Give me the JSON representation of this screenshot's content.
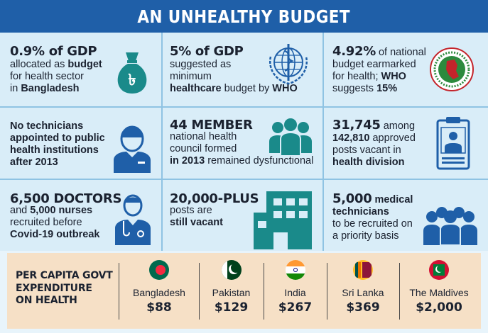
{
  "title": "AN UNHEALTHY BUDGET",
  "cells": [
    {
      "id": "gdp",
      "line1_bold": "0.9%",
      "line1_rest": " of GDP",
      "line2": "allocated as ",
      "line2_bold": "budget",
      "line3": "for health sector",
      "line4": "in ",
      "line4_bold": "Bangladesh"
    },
    {
      "id": "who",
      "line1_bold": "5%",
      "line1_rest": " of GDP",
      "line2": "suggested as",
      "line3": "minimum",
      "line4_bold": "healthcare",
      "line4_rest": " budget by ",
      "line4_bold2": "WHO"
    },
    {
      "id": "national",
      "line1_bold": "4.92%",
      "line1_rest": " of national",
      "line2": "budget earmarked",
      "line3": "for health; ",
      "line3_bold": "WHO",
      "line4": "suggests ",
      "line4_bold": "15%"
    },
    {
      "id": "technicians",
      "line1": "No technicians",
      "line2": "appointed to public",
      "line3": "health institutions",
      "line4": "after 2013"
    },
    {
      "id": "council",
      "line1": "44 MEMBER",
      "line2": "national health",
      "line3": "council formed",
      "line4_bold": "in 2013",
      "line4_rest": " remained dysfunctional"
    },
    {
      "id": "vacant",
      "line1": "31,745",
      "line1_rest": " among",
      "line2_bold": "142,810",
      "line2_rest": " approved",
      "line3": "posts vacant in",
      "line4": "health division"
    },
    {
      "id": "doctors",
      "line1": "6,500 DOCTORS",
      "line2": "and ",
      "line2_bold": "5,000 nurses",
      "line3": "recruited before",
      "line4": "Covid-19 outbreak"
    },
    {
      "id": "posts",
      "line1": "20,000-PLUS",
      "line2": "posts are",
      "line3": "still vacant"
    },
    {
      "id": "medtech",
      "line1_bold": "5,000",
      "line1_rest": " medical",
      "line2": "technicians",
      "line3": "to be recruited on",
      "line4": "a priority basis"
    }
  ],
  "per_capita": {
    "label_line1": "PER CAPITA GOVT",
    "label_line2": "EXPENDITURE",
    "label_line3": "ON HEALTH",
    "countries": [
      {
        "name": "Bangladesh",
        "amount": "$88",
        "flag": "bangladesh-flag-icon"
      },
      {
        "name": "Pakistan",
        "amount": "$129",
        "flag": "pakistan-flag-icon"
      },
      {
        "name": "India",
        "amount": "$267",
        "flag": "india-flag-icon"
      },
      {
        "name": "Sri Lanka",
        "amount": "$369",
        "flag": "sri-lanka-flag-icon"
      },
      {
        "name": "The Maldives",
        "amount": "$2,000",
        "flag": "maldives-flag-icon"
      }
    ]
  },
  "colors": {
    "header": "#1f5fa8",
    "icon_teal": "#1a8a8a",
    "icon_blue": "#1f5fa8",
    "cell_bg": "#d9edf8",
    "bottom_bg": "#f6e0c6"
  }
}
